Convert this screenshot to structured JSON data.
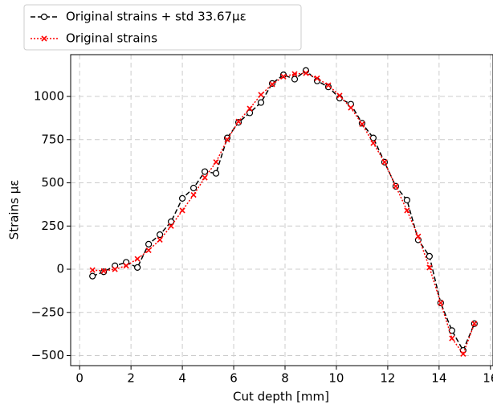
{
  "chart_data": {
    "type": "line",
    "x_label": "Cut depth [mm]",
    "y_label": "Strains με",
    "x": [
      0.5,
      0.9375,
      1.375,
      1.8125,
      2.25,
      2.6875,
      3.125,
      3.5625,
      4.0,
      4.4375,
      4.875,
      5.3125,
      5.75,
      6.1875,
      6.625,
      7.0625,
      7.5,
      7.9375,
      8.375,
      8.8125,
      9.25,
      9.6875,
      10.125,
      10.5625,
      11.0,
      11.4375,
      11.875,
      12.3125,
      12.75,
      13.1875,
      13.625,
      14.0625,
      14.5,
      14.9375,
      15.375
    ],
    "series": [
      {
        "name": "Original strains + std 33.67με",
        "color": "#000000",
        "style": "dashed",
        "marker": "circle",
        "values": [
          -40,
          -15,
          20,
          40,
          10,
          145,
          200,
          275,
          410,
          470,
          565,
          555,
          760,
          850,
          905,
          965,
          1075,
          1125,
          1100,
          1150,
          1090,
          1055,
          990,
          955,
          845,
          760,
          620,
          480,
          400,
          170,
          75,
          -195,
          -355,
          -470,
          -315
        ]
      },
      {
        "name": "Original strains",
        "color": "#ff0000",
        "style": "dotted",
        "marker": "x",
        "values": [
          -5,
          -10,
          0,
          20,
          60,
          110,
          170,
          250,
          340,
          430,
          530,
          620,
          750,
          855,
          930,
          1010,
          1070,
          1115,
          1130,
          1135,
          1105,
          1065,
          1005,
          935,
          840,
          730,
          620,
          480,
          340,
          190,
          10,
          -195,
          -400,
          -490,
          -315
        ]
      }
    ],
    "xlim": [
      -0.35,
      16.1
    ],
    "ylim": [
      -558,
      1242
    ],
    "xticks": [
      0,
      2,
      4,
      6,
      8,
      10,
      12,
      14,
      16
    ],
    "yticks": [
      {
        "value": -500,
        "label": "−500"
      },
      {
        "value": -250,
        "label": "−250"
      },
      0,
      250,
      500,
      750,
      1000
    ],
    "grid": true,
    "legend": "above-left"
  }
}
